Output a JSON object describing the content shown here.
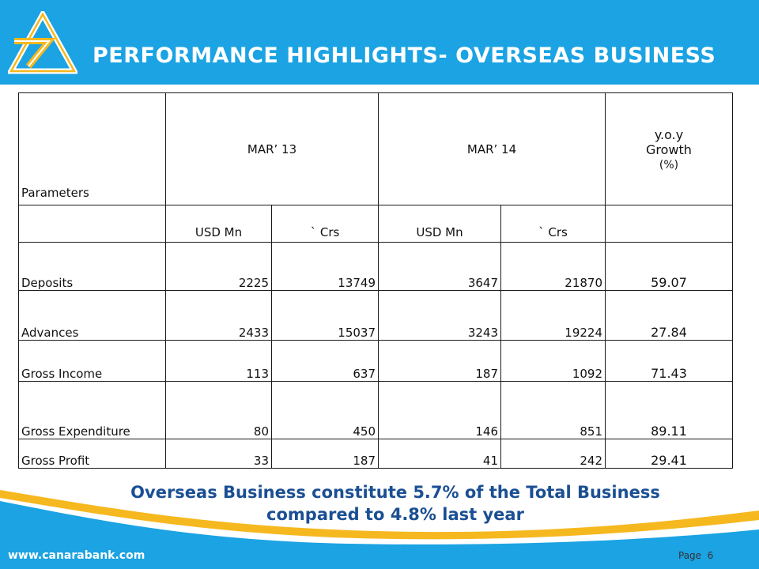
{
  "title": "PERFORMANCE  HIGHLIGHTS- OVERSEAS BUSINESS",
  "table": {
    "header": {
      "parameters": "Parameters",
      "mar13": "MAR’ 13",
      "mar14": "MAR’ 14",
      "growth_line1": "y.o.y",
      "growth_line2": "Growth",
      "growth_line3": "(%)"
    },
    "subheader": {
      "usd1": "USD Mn",
      "crs1": "` Crs",
      "usd2": "USD Mn",
      "crs2": "` Crs"
    },
    "rows": [
      {
        "name": "Deposits",
        "usd13": "2225",
        "crs13": "13749",
        "usd14": "3647",
        "crs14": "21870",
        "growth": "59.07"
      },
      {
        "name": "Advances",
        "usd13": "2433",
        "crs13": "15037",
        "usd14": "3243",
        "crs14": "19224",
        "growth": "27.84"
      },
      {
        "name": "Gross Income",
        "usd13": "113",
        "crs13": "637",
        "usd14": "187",
        "crs14": "1092",
        "growth": "71.43"
      },
      {
        "name": "Gross Expenditure",
        "usd13": "80",
        "crs13": "450",
        "usd14": "146",
        "crs14": "851",
        "growth": "89.11"
      },
      {
        "name": "Gross Profit",
        "usd13": "33",
        "crs13": "187",
        "usd14": "41",
        "crs14": "242",
        "growth": "29.41"
      }
    ]
  },
  "footnote": {
    "line1": "Overseas Business constitute 5.7% of the Total Business",
    "line2": "compared  to 4.8% last year"
  },
  "footer": {
    "url": "www.canarabank.com",
    "page_label": "Page",
    "page_number": "6"
  },
  "colors": {
    "header_blue": "#1ba3e3",
    "footnote_navy": "#1b4f93",
    "footer_gold": "#f6b81f"
  }
}
